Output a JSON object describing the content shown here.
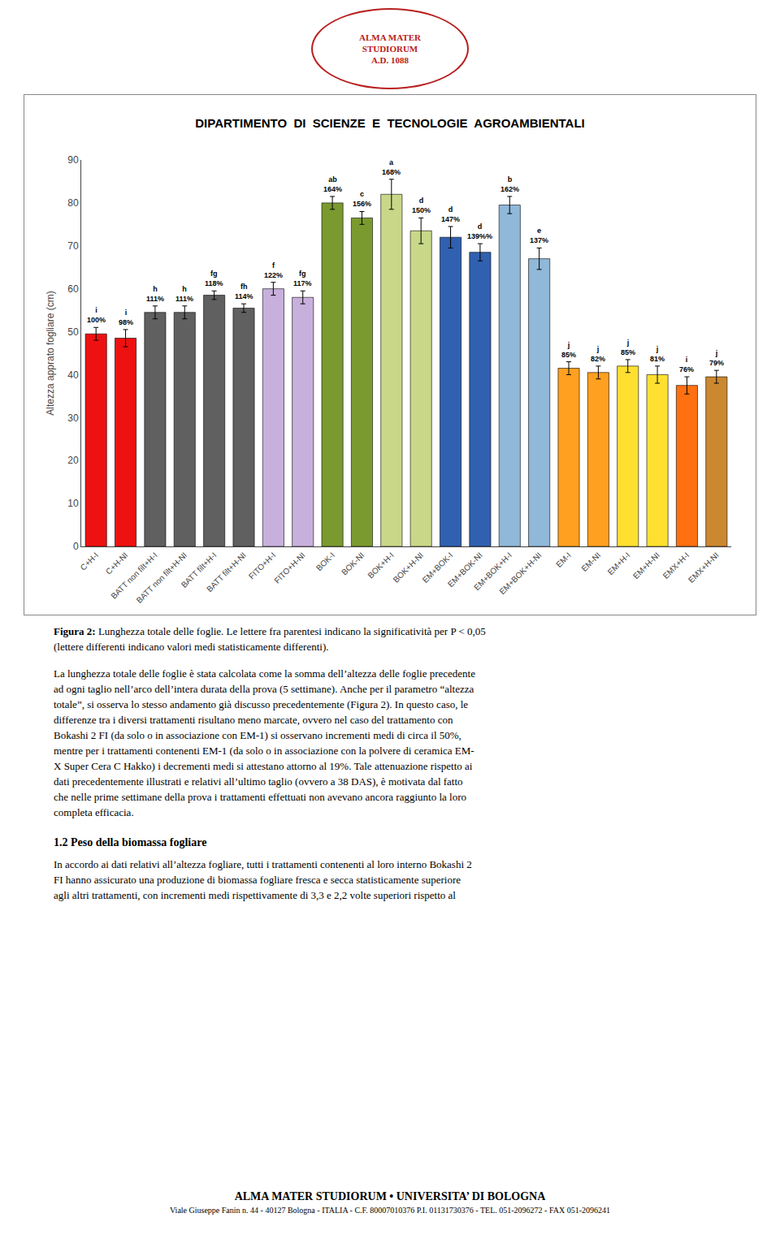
{
  "chart_data": {
    "type": "bar",
    "title": "DIPARTIMENTO  DI  SCIENZE  E  TECNOLOGIE  AGROAMBIENTALI",
    "ylabel": "Altezza apprato fogliare (cm)",
    "categories": [
      "C+H-I",
      "C+H-NI",
      "BATT non filt+H-I",
      "BATT non filt+H-NI",
      "BATT filt+H-I",
      "BATT filt+H-NI",
      "FITO+H-I",
      "FITO+H-NI",
      "BOK-I",
      "BOK-NI",
      "BOK+H-I",
      "BOK+H-NI",
      "EM+BOK-I",
      "EM+BOK-NI",
      "EM+BOK+H-I",
      "EM+BOK+H-NI",
      "EM-I",
      "EM-NI",
      "EM+H-I",
      "EM+H-NI",
      "EMX+H-I",
      "EMX+H-NI"
    ],
    "values": [
      49.5,
      48.5,
      54.5,
      54.5,
      58.5,
      55.5,
      60.0,
      58.0,
      80.0,
      76.5,
      82.0,
      73.5,
      72.0,
      68.5,
      79.5,
      67.0,
      41.5,
      40.5,
      42.0,
      40.0,
      37.5,
      39.5
    ],
    "errors": [
      1.5,
      2.0,
      1.5,
      1.5,
      1.0,
      1.0,
      1.5,
      1.5,
      1.5,
      1.5,
      3.5,
      3.0,
      2.5,
      2.0,
      2.0,
      2.5,
      1.5,
      1.5,
      1.5,
      2.0,
      2.0,
      1.5
    ],
    "colors": [
      "#EE1111",
      "#EE1111",
      "#606060",
      "#606060",
      "#606060",
      "#606060",
      "#C8B0DC",
      "#C8B0DC",
      "#7A9A30",
      "#7A9A30",
      "#C8D888",
      "#C8D888",
      "#3060B0",
      "#3060B0",
      "#90B8D8",
      "#90B8D8",
      "#FFA020",
      "#FFA020",
      "#FFE030",
      "#FFE030",
      "#FF7010",
      "#CC8830"
    ],
    "ylim": [
      0,
      90
    ],
    "yticks": [
      0,
      10,
      20,
      30,
      40,
      50,
      60,
      70,
      80,
      90
    ],
    "grid": false,
    "annotations": [
      {
        "category": "C+H-I",
        "lines": [
          "i",
          "100%"
        ]
      },
      {
        "category": "C+H-NI",
        "lines": [
          "i",
          "98%"
        ]
      },
      {
        "category": "BATT non filt+H-I",
        "lines": [
          "h",
          "111%"
        ]
      },
      {
        "category": "BATT non filt+H-NI",
        "lines": [
          "h",
          "111%"
        ]
      },
      {
        "category": "BATT filt+H-I",
        "lines": [
          "fg",
          "118%"
        ]
      },
      {
        "category": "BATT filt+H-NI",
        "lines": [
          "fh",
          "114%"
        ]
      },
      {
        "category": "FITO+H-I",
        "lines": [
          "f",
          "122%"
        ]
      },
      {
        "category": "FITO+H-NI",
        "lines": [
          "fg",
          "117%"
        ]
      },
      {
        "category": "BOK-I",
        "lines": [
          "ab",
          "164%"
        ]
      },
      {
        "category": "BOK-NI",
        "lines": [
          "c",
          "156%"
        ]
      },
      {
        "category": "BOK+H-I",
        "lines": [
          "a",
          "168%"
        ]
      },
      {
        "category": "BOK+H-NI",
        "lines": [
          "d",
          "150%"
        ]
      },
      {
        "category": "EM+BOK-I",
        "lines": [
          "d",
          "147%"
        ]
      },
      {
        "category": "EM+BOK-NI",
        "lines": [
          "d",
          "139%%"
        ]
      },
      {
        "category": "EM+BOK+H-I",
        "lines": [
          "b",
          "162%"
        ]
      },
      {
        "category": "EM+BOK+H-NI",
        "lines": [
          "e",
          "137%"
        ]
      },
      {
        "category": "EM-I",
        "lines": [
          "j",
          "85%"
        ]
      },
      {
        "category": "EM-NI",
        "lines": [
          "j",
          "82%"
        ]
      },
      {
        "category": "EM+H-I",
        "lines": [
          "j",
          "85%"
        ]
      },
      {
        "category": "EM+H-NI",
        "lines": [
          "j",
          "81%"
        ]
      },
      {
        "category": "EMX+H-I",
        "lines": [
          "i",
          "76%"
        ]
      },
      {
        "category": "EMX+H-NI",
        "lines": [
          "j",
          "79%"
        ]
      }
    ]
  },
  "logo": [
    "ALMA MATER",
    "STUDIORUM",
    "A.D. 1088"
  ],
  "caption_label": "Figura 2:",
  "caption": [
    "Lunghezza totale delle foglie. Le lettere fra parentesi indicano la significatività per P < 0,05",
    "(lettere differenti indicano valori medi statisticamente differenti)."
  ],
  "body_text": [
    "La lunghezza totale delle foglie è stata calcolata come la somma dell’altezza delle foglie precedente",
    "ad ogni taglio nell’arco dell’intera durata della prova (5 settimane). Anche per il parametro “altezza",
    "totale”, si osserva lo stesso andamento già discusso precedentemente (Figura 2). In questo caso, le",
    "differenze tra i diversi trattamenti risultano meno marcate, ovvero nel caso del trattamento con",
    "Bokashi 2 FI (da solo o in associazione con EM-1) si osservano incrementi medi di circa il 50%,",
    "mentre per i trattamenti contenenti EM-1 (da solo o in associazione con la polvere di ceramica EM-",
    "X Super Cera C Hakko) i decrementi medi si attestano attorno al 19%. Tale attenuazione rispetto ai",
    "dati precedentemente illustrati e relativi all’ultimo taglio (ovvero a 38 DAS), è motivata dal fatto",
    "che nelle prime settimane della prova i trattamenti effettuati non avevano ancora raggiunto la loro",
    "completa efficacia."
  ],
  "section_title": "1.2 Peso della biomassa fogliare",
  "section_body": [
    "In accordo ai dati relativi all’altezza fogliare, tutti i trattamenti contenenti al loro interno Bokashi 2",
    "FI hanno assicurato una produzione di biomassa fogliare fresca e secca statisticamente superiore",
    "agli altri trattamenti, con incrementi medi rispettivamente di 3,3 e 2,2 volte superiori rispetto al"
  ],
  "footer": [
    "ALMA MATER STUDIORUM • UNIVERSITA’ DI BOLOGNA",
    "Viale Giuseppe Fanin n. 44 - 40127 Bologna - ITALIA - C.F. 80007010376 P.I. 01131730376 - TEL. 051-2096272 - FAX 051-2096241"
  ]
}
